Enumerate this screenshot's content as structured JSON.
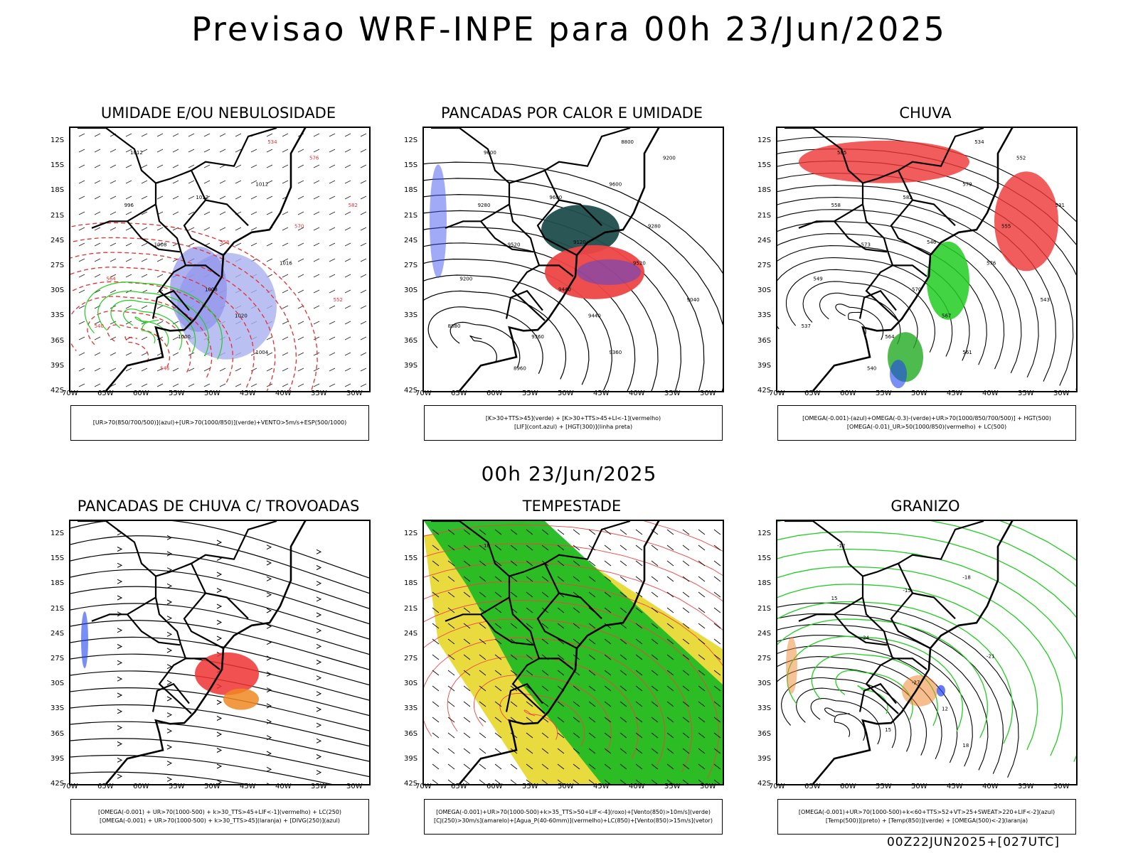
{
  "header": {
    "title": "Previsao WRF-INPE  para 00h 23/Jun/2025"
  },
  "mid_date": "00h 23/Jun/2025",
  "footer": {
    "stamp": "00Z22JUN2025+[027UTC]"
  },
  "axes": {
    "lat_labels": [
      "12S",
      "15S",
      "18S",
      "21S",
      "24S",
      "27S",
      "30S",
      "33S",
      "36S",
      "39S",
      "42S"
    ],
    "lon_labels": [
      "70W",
      "65W",
      "60W",
      "55W",
      "50W",
      "45W",
      "40W",
      "35W",
      "30W"
    ]
  },
  "panels": [
    {
      "title": "UMIDADE E/OU NEBULOSIDADE",
      "legend": [
        "[UR>70(850/700/500)](azul)+[UR>70(1000/850)](verde)+VENTO>5m/s+ESP(500/1000)"
      ],
      "labels": [
        "1012",
        "1012",
        "1012",
        "1016",
        "1008",
        "1008",
        "1020",
        "1000",
        "1004",
        "996",
        "570",
        "576",
        "564",
        "558",
        "552",
        "546",
        "540",
        "534",
        "582"
      ]
    },
    {
      "title": "PANCADAS POR CALOR E UMIDADE",
      "legend": [
        "[K>30+TTS>45](verde) + [K>30+TTS>45+LI<-1](vermelho)",
        "[LIF](cont.azul) + [HGT(300)](linha preta)"
      ],
      "labels": [
        "9600",
        "9600",
        "9600",
        "9520",
        "9520",
        "9440",
        "9440",
        "9360",
        "9360",
        "9280",
        "9280",
        "9200",
        "9200",
        "9120",
        "9040",
        "8960",
        "8880",
        "8800"
      ]
    },
    {
      "title": "CHUVA",
      "legend": [
        "[OMEGA(-0.001)-(azul)+OMEGA(-0.3)-(verde)+UR>70(1000/850/700/500)] + HGT(500)",
        "[OMEGA(-0.01)_UR>50(1000/850)(vermelho) + LC(500)"
      ],
      "labels": [
        "585",
        "582",
        "579",
        "576",
        "573",
        "570",
        "567",
        "564",
        "561",
        "558",
        "555",
        "552",
        "549",
        "546",
        "543",
        "540",
        "537",
        "534",
        "531"
      ]
    },
    {
      "title": "PANCADAS DE CHUVA C/ TROVOADAS",
      "legend": [
        "[OMEGA(-0.001) + UR>70(1000-500) + k>30_TTS>45+LIF<-1](vermelho) + LC(250)",
        "[OMEGA(-0.001) + UR>70(1000-500) + k>30_TTS>45](laranja) + [DIVG(250)](azul)"
      ],
      "labels": []
    },
    {
      "title": "TEMPESTADE",
      "legend": [
        "[OMEGA(-0.001)+UR>70(1000-500)+k>35_TTS>50+LIF<-4](roxo)+[Vento(850)>10m/s](verde)",
        "[CJ(250)>30m/s](amarelo)+[Agua_P(40-60mm)](vermelho)+LC(850)+[Vento(850)>15m/s](vetor)"
      ],
      "labels": [
        "10"
      ]
    },
    {
      "title": "GRANIZO",
      "legend": [
        "[OMEGA(-0.001)+UR>70(1000-500)+k<60+TTS>52+VT>25+SWEAT>220+LIF<-2](azul)",
        "[Temp(500)](preto) + [Temp(850)](verde) + [OMEGA(500)<-2](laranja)"
      ],
      "labels": [
        "-12",
        "-15",
        "-18",
        "-21",
        "-24",
        "-27",
        "12",
        "15",
        "18",
        "15"
      ]
    }
  ]
}
